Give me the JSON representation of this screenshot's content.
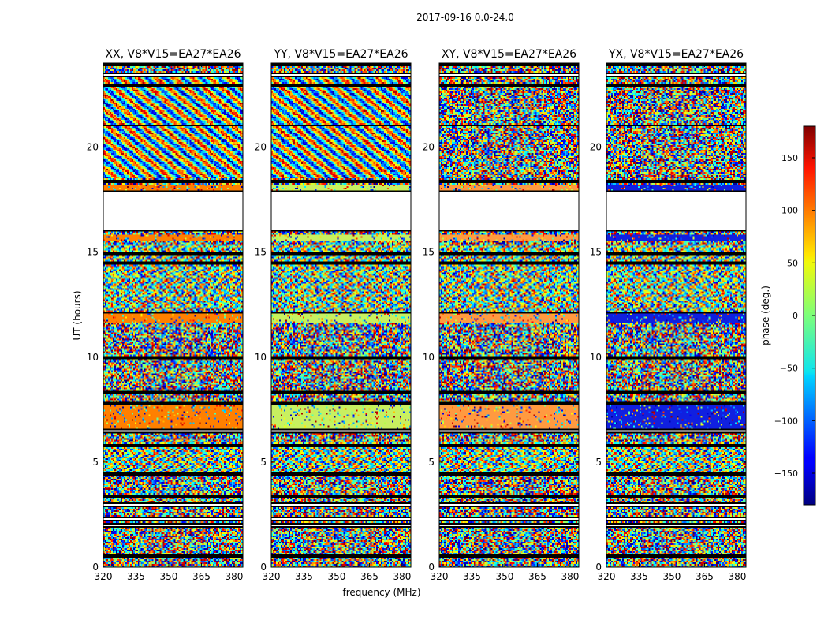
{
  "suptitle": "2017-09-16 0.0-24.0",
  "xlabel": "frequency (MHz)",
  "ylabel": "UT (hours)",
  "chart_data": [
    {
      "type": "heatmap",
      "title": "XX, V8*V15=EA27*EA26",
      "x_ticks": [
        320,
        335,
        350,
        365,
        380
      ],
      "y_ticks": [
        0,
        5,
        10,
        15,
        20
      ],
      "xlim": [
        320,
        384
      ],
      "ylim": [
        0,
        24
      ],
      "calibrator_color": "#ff8000",
      "calibrator_scans": [
        {
          "t0": 6.55,
          "t1": 7.75
        },
        {
          "t0": 11.6,
          "t1": 12.1
        },
        {
          "t0": 15.55,
          "t1": 15.85
        },
        {
          "t0": 17.95,
          "t1": 18.2
        }
      ]
    },
    {
      "type": "heatmap",
      "title": "YY, V8*V15=EA27*EA26",
      "x_ticks": [
        320,
        335,
        350,
        365,
        380
      ],
      "y_ticks": [
        0,
        5,
        10,
        15,
        20
      ],
      "xlim": [
        320,
        384
      ],
      "ylim": [
        0,
        24
      ],
      "calibrator_color": "#c8f060",
      "calibrator_scans": [
        {
          "t0": 6.55,
          "t1": 7.75
        },
        {
          "t0": 11.6,
          "t1": 12.1
        },
        {
          "t0": 15.55,
          "t1": 15.85
        },
        {
          "t0": 17.95,
          "t1": 18.2
        }
      ]
    },
    {
      "type": "heatmap",
      "title": "XY, V8*V15=EA27*EA26",
      "x_ticks": [
        320,
        335,
        350,
        365,
        380
      ],
      "y_ticks": [
        0,
        5,
        10,
        15,
        20
      ],
      "xlim": [
        320,
        384
      ],
      "ylim": [
        0,
        24
      ],
      "calibrator_color": "#ff9a40",
      "calibrator_scans": [
        {
          "t0": 6.55,
          "t1": 7.75
        },
        {
          "t0": 11.6,
          "t1": 12.1
        },
        {
          "t0": 15.55,
          "t1": 15.85
        },
        {
          "t0": 17.95,
          "t1": 18.2
        }
      ]
    },
    {
      "type": "heatmap",
      "title": "YX, V8*V15=EA27*EA26",
      "x_ticks": [
        320,
        335,
        350,
        365,
        380
      ],
      "y_ticks": [
        0,
        5,
        10,
        15,
        20
      ],
      "xlim": [
        320,
        384
      ],
      "ylim": [
        0,
        24
      ],
      "calibrator_color": "#1020e0",
      "calibrator_scans": [
        {
          "t0": 6.55,
          "t1": 7.75
        },
        {
          "t0": 11.6,
          "t1": 12.1
        },
        {
          "t0": 15.55,
          "t1": 15.85
        },
        {
          "t0": 17.95,
          "t1": 18.2
        }
      ]
    }
  ],
  "gaps_hours": [
    [
      0.5,
      0.55
    ],
    [
      1.9,
      2.05
    ],
    [
      2.2,
      2.35
    ],
    [
      2.9,
      3.05
    ],
    [
      3.3,
      3.45
    ],
    [
      4.4,
      4.5
    ],
    [
      5.75,
      5.85
    ],
    [
      6.4,
      6.55
    ],
    [
      7.75,
      7.85
    ],
    [
      8.3,
      8.35
    ],
    [
      9.9,
      10.0
    ],
    [
      12.1,
      12.15
    ],
    [
      14.4,
      14.5
    ],
    [
      14.9,
      15.0
    ],
    [
      16.0,
      17.9
    ],
    [
      18.35,
      18.45
    ],
    [
      21.0,
      21.05
    ],
    [
      22.9,
      23.0
    ],
    [
      23.4,
      23.5
    ],
    [
      23.9,
      24.0
    ]
  ],
  "colorbar": {
    "label": "phase (deg.)",
    "range": [
      -180,
      180
    ],
    "ticks": [
      150,
      100,
      50,
      0,
      -50,
      -100,
      -150
    ],
    "tick_labels": [
      "150",
      "100",
      "50",
      "0",
      "−50",
      "−100",
      "−150"
    ],
    "colormap": "jet"
  }
}
